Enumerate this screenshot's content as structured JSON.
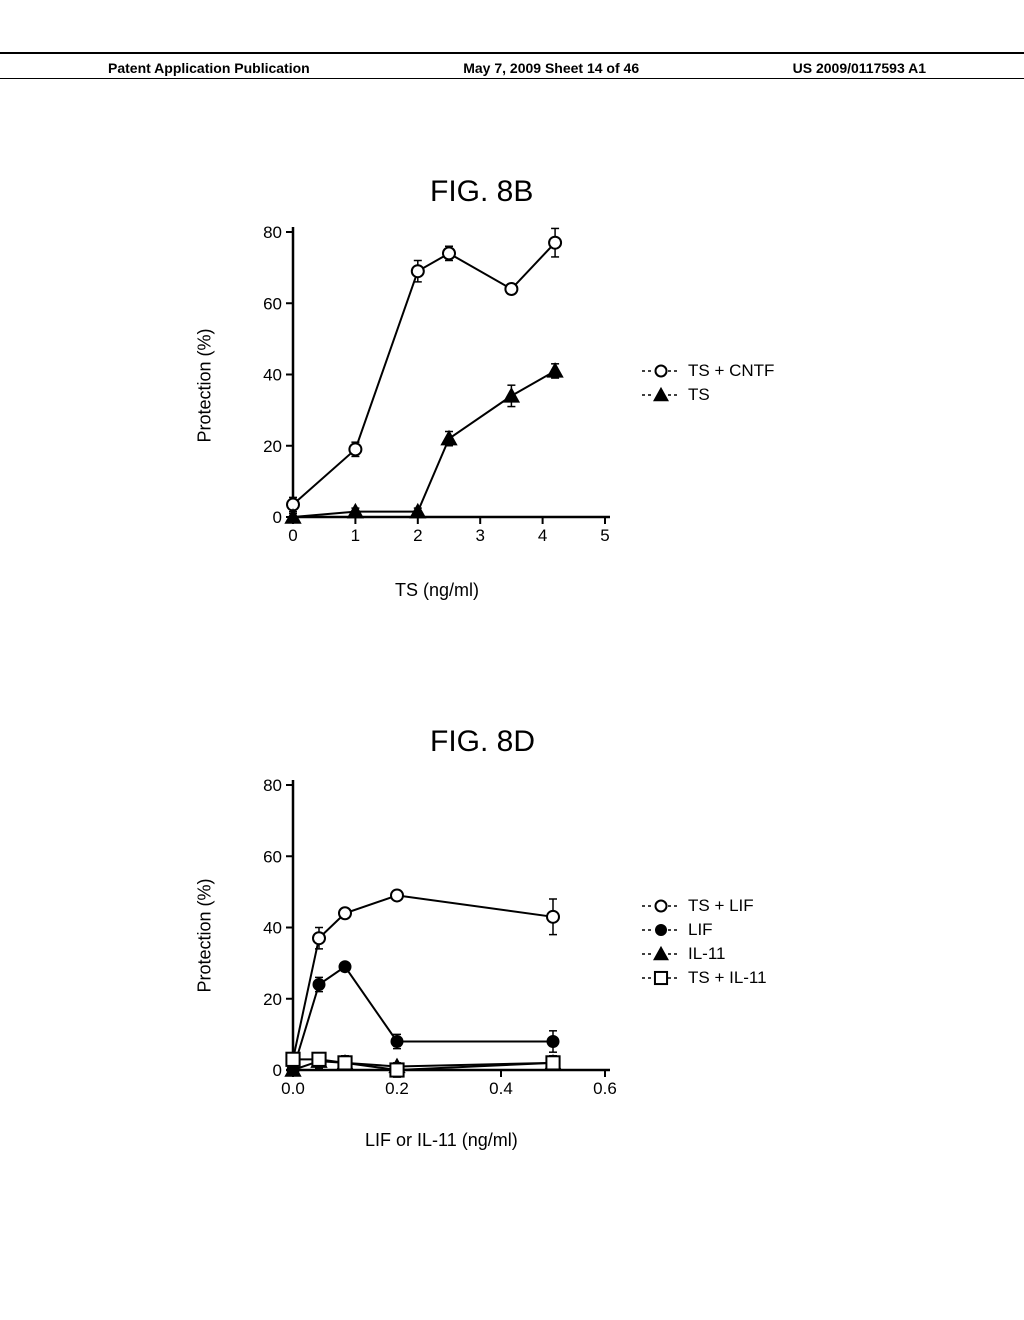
{
  "header": {
    "left": "Patent Application Publication",
    "center": "May 7, 2009  Sheet 14 of 46",
    "right": "US 2009/0117593 A1"
  },
  "fig8b": {
    "title": "FIG. 8B",
    "ylabel": "Protection (%)",
    "xlabel": "TS (ng/ml)",
    "ylim": [
      0,
      80
    ],
    "yticks": [
      0,
      20,
      40,
      60,
      80
    ],
    "xlim": [
      0,
      5
    ],
    "xticks": [
      0,
      1,
      2,
      3,
      4,
      5
    ],
    "legend": [
      {
        "marker": "open-circle",
        "label": "TS + CNTF"
      },
      {
        "marker": "filled-triangle",
        "label": "TS"
      }
    ],
    "series": [
      {
        "name": "TS+CNTF",
        "marker": "open-circle",
        "color": "#000000",
        "fill": "#ffffff",
        "data": [
          {
            "x": 0,
            "y": 3.5,
            "el": 2,
            "eh": 2
          },
          {
            "x": 1,
            "y": 19,
            "el": 2,
            "eh": 2
          },
          {
            "x": 2,
            "y": 69,
            "el": 3,
            "eh": 3
          },
          {
            "x": 2.5,
            "y": 74,
            "el": 2,
            "eh": 2
          },
          {
            "x": 3.5,
            "y": 64,
            "el": 1,
            "eh": 1
          },
          {
            "x": 4.2,
            "y": 77,
            "el": 4,
            "eh": 4
          }
        ]
      },
      {
        "name": "TS",
        "marker": "filled-triangle",
        "color": "#000000",
        "fill": "#000000",
        "data": [
          {
            "x": 0,
            "y": 0,
            "el": 1,
            "eh": 1
          },
          {
            "x": 1,
            "y": 1.5,
            "el": 1,
            "eh": 1
          },
          {
            "x": 2,
            "y": 1.5,
            "el": 1,
            "eh": 1
          },
          {
            "x": 2.5,
            "y": 22,
            "el": 2,
            "eh": 2
          },
          {
            "x": 3.5,
            "y": 34,
            "el": 3,
            "eh": 3
          },
          {
            "x": 4.2,
            "y": 41,
            "el": 2,
            "eh": 2
          }
        ]
      }
    ]
  },
  "fig8d": {
    "title": "FIG. 8D",
    "ylabel": "Protection (%)",
    "xlabel": "LIF or IL-11 (ng/ml)",
    "ylim": [
      0,
      80
    ],
    "yticks": [
      0,
      20,
      40,
      60,
      80
    ],
    "xlim": [
      0.0,
      0.6
    ],
    "xticks": [
      0.0,
      0.2,
      0.4,
      0.6
    ],
    "legend": [
      {
        "marker": "open-circle",
        "label": "TS + LIF"
      },
      {
        "marker": "filled-circle",
        "label": "LIF"
      },
      {
        "marker": "filled-triangle",
        "label": "IL-11"
      },
      {
        "marker": "open-square",
        "label": "TS + IL-11"
      }
    ],
    "series": [
      {
        "name": "TS+LIF",
        "marker": "open-circle",
        "color": "#000000",
        "fill": "#ffffff",
        "data": [
          {
            "x": 0,
            "y": 3,
            "el": 1,
            "eh": 1
          },
          {
            "x": 0.05,
            "y": 37,
            "el": 3,
            "eh": 3
          },
          {
            "x": 0.1,
            "y": 44,
            "el": 1,
            "eh": 1
          },
          {
            "x": 0.2,
            "y": 49,
            "el": 1,
            "eh": 1
          },
          {
            "x": 0.5,
            "y": 43,
            "el": 5,
            "eh": 5
          }
        ]
      },
      {
        "name": "LIF",
        "marker": "filled-circle",
        "color": "#000000",
        "fill": "#000000",
        "data": [
          {
            "x": 0,
            "y": 0,
            "el": 1,
            "eh": 1
          },
          {
            "x": 0.05,
            "y": 24,
            "el": 2,
            "eh": 2
          },
          {
            "x": 0.1,
            "y": 29,
            "el": 1,
            "eh": 1
          },
          {
            "x": 0.2,
            "y": 8,
            "el": 2,
            "eh": 2
          },
          {
            "x": 0.5,
            "y": 8,
            "el": 3,
            "eh": 3
          }
        ]
      },
      {
        "name": "IL-11",
        "marker": "filled-triangle",
        "color": "#000000",
        "fill": "#000000",
        "data": [
          {
            "x": 0,
            "y": 0,
            "el": 1,
            "eh": 1
          },
          {
            "x": 0.05,
            "y": 2.5,
            "el": 2,
            "eh": 2
          },
          {
            "x": 0.1,
            "y": 2,
            "el": 2,
            "eh": 2
          },
          {
            "x": 0.2,
            "y": 1,
            "el": 1,
            "eh": 1
          },
          {
            "x": 0.5,
            "y": 2,
            "el": 2,
            "eh": 2
          }
        ]
      },
      {
        "name": "TS+IL-11",
        "marker": "open-square",
        "color": "#000000",
        "fill": "#ffffff",
        "data": [
          {
            "x": 0,
            "y": 3,
            "el": 1,
            "eh": 1
          },
          {
            "x": 0.05,
            "y": 3,
            "el": 1,
            "eh": 1
          },
          {
            "x": 0.1,
            "y": 2,
            "el": 2,
            "eh": 2
          },
          {
            "x": 0.2,
            "y": 0,
            "el": 2,
            "eh": 2
          },
          {
            "x": 0.5,
            "y": 2,
            "el": 2,
            "eh": 2
          }
        ]
      }
    ]
  },
  "style": {
    "axis_width": 2.5,
    "line_width": 2,
    "marker_size": 6,
    "tick_len": 7,
    "tick_fontsize": 17
  }
}
